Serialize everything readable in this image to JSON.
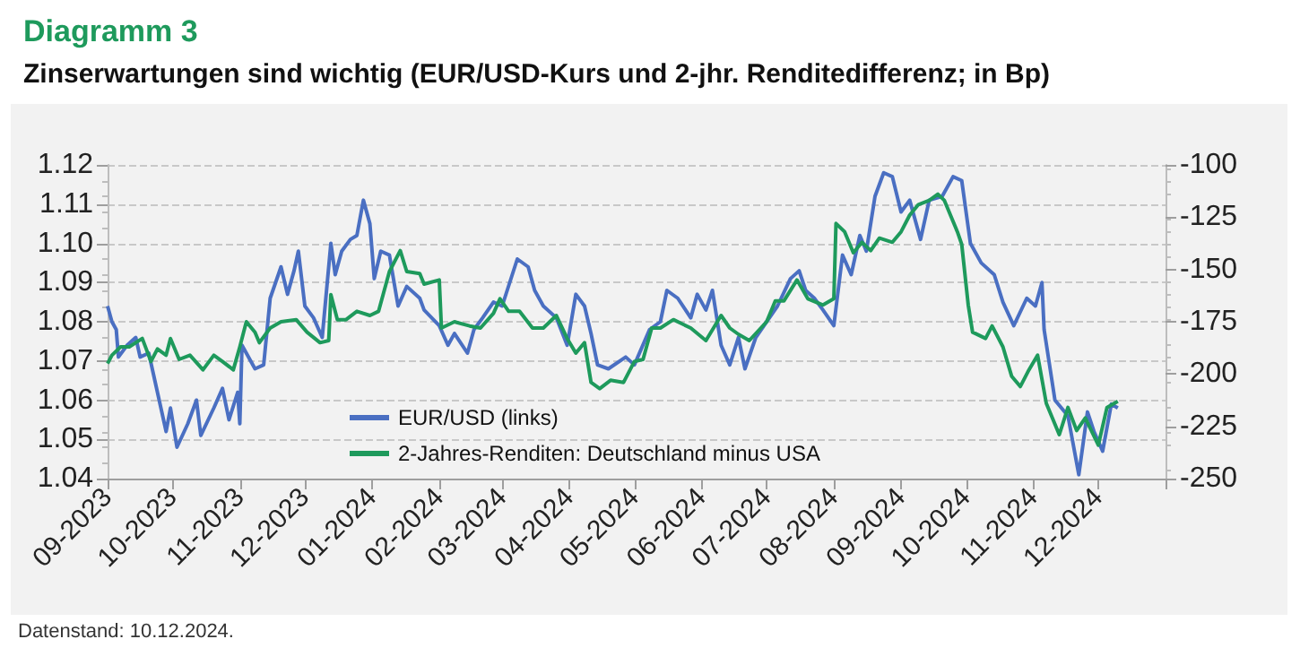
{
  "chart_data": {
    "type": "line",
    "title": "Diagramm 3",
    "subtitle": "Zinserwartungen sind wichtig (EUR/USD-Kurs und 2-jhr. Renditedifferenz; in Bp)",
    "annotations": [
      "Datenstand: 10.12.2024."
    ],
    "xlim": [
      "2023-09-01",
      "2025-01-01"
    ],
    "xticks": [
      {
        "value": "2023-09-01",
        "label": "09-2023"
      },
      {
        "value": "2023-10-01",
        "label": "10-2023"
      },
      {
        "value": "2023-11-01",
        "label": "11-2023"
      },
      {
        "value": "2023-12-01",
        "label": "12-2023"
      },
      {
        "value": "2024-01-01",
        "label": "01-2024"
      },
      {
        "value": "2024-02-01",
        "label": "02-2024"
      },
      {
        "value": "2024-03-01",
        "label": "03-2024"
      },
      {
        "value": "2024-04-01",
        "label": "04-2024"
      },
      {
        "value": "2024-05-01",
        "label": "05-2024"
      },
      {
        "value": "2024-06-01",
        "label": "06-2024"
      },
      {
        "value": "2024-07-01",
        "label": "07-2024"
      },
      {
        "value": "2024-08-01",
        "label": "08-2024"
      },
      {
        "value": "2024-09-01",
        "label": "09-2024"
      },
      {
        "value": "2024-10-01",
        "label": "10-2024"
      },
      {
        "value": "2024-11-01",
        "label": "11-2024"
      },
      {
        "value": "2024-12-01",
        "label": "12-2024"
      },
      {
        "value": "2025-01-01",
        "label": null
      }
    ],
    "ylim": [
      1.04,
      1.12
    ],
    "yticks": [
      1.04,
      1.05,
      1.06,
      1.07,
      1.08,
      1.09,
      {
        "value": 1.1,
        "label": "1.10"
      },
      1.11,
      1.12
    ],
    "y2lim": [
      -250,
      -100
    ],
    "y2ticks": [
      -250,
      -225,
      -200,
      -175,
      -150,
      -125,
      -100
    ],
    "grid": "y",
    "legend": "bottom",
    "marker": "none",
    "line_style": "solid",
    "series": [
      {
        "name": "EUR/USD (links)",
        "color": "#4a6fc2",
        "x": [
          "2023-09-01",
          "2023-09-03",
          "2023-09-05",
          "2023-09-06",
          "2023-09-10",
          "2023-09-14",
          "2023-09-16",
          "2023-09-20",
          "2023-09-24",
          "2023-09-28",
          "2023-09-30",
          "2023-10-03",
          "2023-10-08",
          "2023-10-12",
          "2023-10-14",
          "2023-10-20",
          "2023-10-24",
          "2023-10-27",
          "2023-10-31",
          "2023-11-01",
          "2023-11-02",
          "2023-11-08",
          "2023-11-12",
          "2023-11-15",
          "2023-11-20",
          "2023-11-23",
          "2023-11-26",
          "2023-11-28",
          "2023-12-01",
          "2023-12-05",
          "2023-12-09",
          "2023-12-13",
          "2023-12-15",
          "2023-12-18",
          "2023-12-22",
          "2023-12-25",
          "2023-12-28",
          "2023-12-31",
          "2024-01-02",
          "2024-01-05",
          "2024-01-09",
          "2024-01-13",
          "2024-01-17",
          "2024-01-23",
          "2024-01-25",
          "2024-02-01",
          "2024-02-05",
          "2024-02-08",
          "2024-02-14",
          "2024-02-17",
          "2024-02-21",
          "2024-02-26",
          "2024-03-01",
          "2024-03-08",
          "2024-03-13",
          "2024-03-16",
          "2024-03-20",
          "2024-03-26",
          "2024-03-31",
          "2024-04-04",
          "2024-04-08",
          "2024-04-11",
          "2024-04-14",
          "2024-04-19",
          "2024-04-27",
          "2024-05-01",
          "2024-05-08",
          "2024-05-13",
          "2024-05-16",
          "2024-05-21",
          "2024-05-27",
          "2024-05-30",
          "2024-06-03",
          "2024-06-06",
          "2024-06-10",
          "2024-06-14",
          "2024-06-18",
          "2024-06-21",
          "2024-06-26",
          "2024-07-01",
          "2024-07-06",
          "2024-07-12",
          "2024-07-16",
          "2024-07-19",
          "2024-07-23",
          "2024-07-27",
          "2024-08-01",
          "2024-08-05",
          "2024-08-09",
          "2024-08-13",
          "2024-08-16",
          "2024-08-20",
          "2024-08-24",
          "2024-08-28",
          "2024-09-01",
          "2024-09-05",
          "2024-09-10",
          "2024-09-14",
          "2024-09-20",
          "2024-09-25",
          "2024-09-29",
          "2024-10-03",
          "2024-10-08",
          "2024-10-14",
          "2024-10-18",
          "2024-10-23",
          "2024-10-29",
          "2024-11-02",
          "2024-11-05",
          "2024-11-06",
          "2024-11-11",
          "2024-11-17",
          "2024-11-22",
          "2024-11-26",
          "2024-11-29",
          "2024-12-03",
          "2024-12-07",
          "2024-12-10"
        ],
        "values": [
          1.084,
          1.08,
          1.078,
          1.071,
          1.074,
          1.076,
          1.071,
          1.072,
          1.062,
          1.052,
          1.058,
          1.048,
          1.054,
          1.06,
          1.051,
          1.058,
          1.063,
          1.055,
          1.062,
          1.054,
          1.074,
          1.068,
          1.069,
          1.086,
          1.094,
          1.087,
          1.093,
          1.098,
          1.084,
          1.081,
          1.076,
          1.1,
          1.092,
          1.098,
          1.101,
          1.102,
          1.111,
          1.105,
          1.091,
          1.098,
          1.097,
          1.084,
          1.089,
          1.086,
          1.083,
          1.079,
          1.074,
          1.077,
          1.072,
          1.078,
          1.081,
          1.085,
          1.084,
          1.096,
          1.094,
          1.088,
          1.084,
          1.081,
          1.074,
          1.087,
          1.084,
          1.077,
          1.069,
          1.068,
          1.071,
          1.069,
          1.078,
          1.08,
          1.088,
          1.086,
          1.081,
          1.087,
          1.083,
          1.088,
          1.074,
          1.069,
          1.076,
          1.068,
          1.076,
          1.08,
          1.084,
          1.091,
          1.093,
          1.088,
          1.086,
          1.083,
          1.079,
          1.097,
          1.092,
          1.102,
          1.098,
          1.112,
          1.118,
          1.117,
          1.108,
          1.111,
          1.101,
          1.111,
          1.112,
          1.117,
          1.116,
          1.1,
          1.095,
          1.092,
          1.085,
          1.079,
          1.086,
          1.084,
          1.09,
          1.078,
          1.06,
          1.056,
          1.041,
          1.057,
          1.052,
          1.047,
          1.059,
          1.058
        ]
      },
      {
        "name": "2-Jahres-Renditen: Deutschland minus USA",
        "color": "#1e9a5c",
        "axis": "y2",
        "x": [
          "2023-09-01",
          "2023-09-03",
          "2023-09-07",
          "2023-09-11",
          "2023-09-17",
          "2023-09-21",
          "2023-09-24",
          "2023-09-28",
          "2023-09-30",
          "2023-10-04",
          "2023-10-09",
          "2023-10-15",
          "2023-10-20",
          "2023-10-24",
          "2023-10-29",
          "2023-11-01",
          "2023-11-04",
          "2023-11-08",
          "2023-11-10",
          "2023-11-15",
          "2023-11-20",
          "2023-11-27",
          "2023-12-02",
          "2023-12-08",
          "2023-12-12",
          "2023-12-13",
          "2023-12-16",
          "2023-12-20",
          "2023-12-25",
          "2023-12-31",
          "2024-01-04",
          "2024-01-09",
          "2024-01-14",
          "2024-01-17",
          "2024-01-23",
          "2024-01-25",
          "2024-02-01",
          "2024-02-02",
          "2024-02-08",
          "2024-02-15",
          "2024-02-20",
          "2024-02-26",
          "2024-02-29",
          "2024-03-04",
          "2024-03-09",
          "2024-03-15",
          "2024-03-20",
          "2024-03-26",
          "2024-03-31",
          "2024-04-04",
          "2024-04-08",
          "2024-04-11",
          "2024-04-15",
          "2024-04-20",
          "2024-04-26",
          "2024-05-01",
          "2024-05-05",
          "2024-05-09",
          "2024-05-13",
          "2024-05-19",
          "2024-05-27",
          "2024-06-03",
          "2024-06-10",
          "2024-06-14",
          "2024-06-18",
          "2024-06-23",
          "2024-07-01",
          "2024-07-05",
          "2024-07-09",
          "2024-07-15",
          "2024-07-20",
          "2024-07-27",
          "2024-08-01",
          "2024-08-02",
          "2024-08-06",
          "2024-08-10",
          "2024-08-14",
          "2024-08-18",
          "2024-08-22",
          "2024-08-28",
          "2024-09-01",
          "2024-09-05",
          "2024-09-09",
          "2024-09-14",
          "2024-09-18",
          "2024-09-21",
          "2024-09-27",
          "2024-09-29",
          "2024-10-02",
          "2024-10-04",
          "2024-10-10",
          "2024-10-13",
          "2024-10-18",
          "2024-10-22",
          "2024-10-26",
          "2024-10-30",
          "2024-11-03",
          "2024-11-07",
          "2024-11-13",
          "2024-11-17",
          "2024-11-21",
          "2024-11-25",
          "2024-12-01",
          "2024-12-05",
          "2024-12-10"
        ],
        "values": [
          -195,
          -191,
          -187,
          -187,
          -183,
          -194,
          -188,
          -191,
          -183,
          -193,
          -191,
          -198,
          -191,
          -194,
          -198,
          -187,
          -175,
          -180,
          -185,
          -178,
          -175,
          -174,
          -180,
          -185,
          -184,
          -162,
          -174,
          -174,
          -170,
          -172,
          -170,
          -151,
          -141,
          -151,
          -152,
          -157,
          -155,
          -178,
          -175,
          -177,
          -178,
          -171,
          -164,
          -170,
          -170,
          -178,
          -178,
          -172,
          -183,
          -190,
          -185,
          -204,
          -207,
          -203,
          -204,
          -194,
          -193,
          -178,
          -178,
          -174,
          -178,
          -184,
          -172,
          -178,
          -181,
          -184,
          -175,
          -165,
          -165,
          -155,
          -164,
          -167,
          -164,
          -128,
          -132,
          -142,
          -137,
          -141,
          -135,
          -137,
          -132,
          -124,
          -119,
          -117,
          -114,
          -117,
          -132,
          -138,
          -167,
          -180,
          -183,
          -177,
          -187,
          -201,
          -206,
          -198,
          -191,
          -214,
          -229,
          -216,
          -227,
          -221,
          -234,
          -216,
          -213
        ]
      }
    ]
  }
}
